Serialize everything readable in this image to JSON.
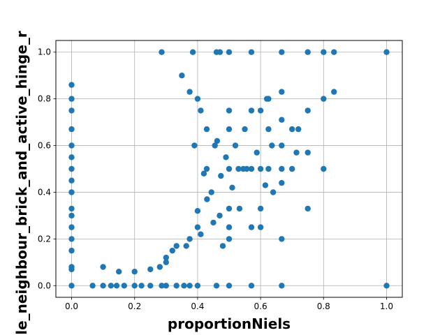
{
  "chart_data": {
    "type": "scatter",
    "title": "",
    "xlabel": "proportionNiels",
    "ylabel": "le_neighbour_brick_and_active_hinge_r",
    "xlim": [
      -0.05,
      1.05
    ],
    "ylim": [
      -0.05,
      1.05
    ],
    "xticks": [
      "0.0",
      "0.2",
      "0.4",
      "0.6",
      "0.8",
      "1.0"
    ],
    "yticks": [
      "0.0",
      "0.2",
      "0.4",
      "0.6",
      "0.8",
      "1.0"
    ],
    "grid": true,
    "marker_color": "#1f77b4",
    "series": [
      {
        "points": [
          [
            0.0,
            0.0
          ],
          [
            0.0,
            0.07
          ],
          [
            0.0,
            0.08
          ],
          [
            0.0,
            0.15
          ],
          [
            0.0,
            0.2
          ],
          [
            0.0,
            0.25
          ],
          [
            0.0,
            0.3
          ],
          [
            0.0,
            0.33
          ],
          [
            0.0,
            0.4
          ],
          [
            0.0,
            0.45
          ],
          [
            0.0,
            0.5
          ],
          [
            0.0,
            0.55
          ],
          [
            0.0,
            0.6
          ],
          [
            0.0,
            0.67
          ],
          [
            0.0,
            0.75
          ],
          [
            0.0,
            0.8
          ],
          [
            0.0,
            0.86
          ],
          [
            0.0667,
            0.0
          ],
          [
            0.1,
            0.0
          ],
          [
            0.125,
            0.0
          ],
          [
            0.143,
            0.0
          ],
          [
            0.167,
            0.0
          ],
          [
            0.2,
            0.0
          ],
          [
            0.222,
            0.0
          ],
          [
            0.25,
            0.0
          ],
          [
            0.286,
            0.0
          ],
          [
            0.3,
            0.0
          ],
          [
            0.333,
            0.0
          ],
          [
            0.357,
            0.0
          ],
          [
            0.375,
            0.0
          ],
          [
            0.4,
            0.0
          ],
          [
            0.46,
            0.0
          ],
          [
            0.5,
            0.0
          ],
          [
            0.571,
            0.0
          ],
          [
            0.667,
            0.0
          ],
          [
            1.0,
            0.0
          ],
          [
            0.286,
            1.0
          ],
          [
            0.385,
            1.0
          ],
          [
            0.46,
            1.0
          ],
          [
            0.471,
            1.0
          ],
          [
            0.5,
            1.0
          ],
          [
            0.571,
            1.0
          ],
          [
            0.667,
            1.0
          ],
          [
            0.75,
            1.0
          ],
          [
            0.8,
            1.0
          ],
          [
            0.833,
            1.0
          ],
          [
            1.0,
            1.0
          ],
          [
            0.8,
            0.8
          ],
          [
            0.8,
            0.5
          ],
          [
            0.75,
            0.75
          ],
          [
            0.75,
            0.57
          ],
          [
            0.75,
            0.33
          ],
          [
            0.714,
            0.57
          ],
          [
            0.7,
            0.67
          ],
          [
            0.667,
            0.83
          ],
          [
            0.667,
            0.71
          ],
          [
            0.667,
            0.5
          ],
          [
            0.667,
            0.44
          ],
          [
            0.667,
            0.2
          ],
          [
            0.625,
            0.8
          ],
          [
            0.625,
            0.67
          ],
          [
            0.625,
            0.5
          ],
          [
            0.6,
            0.75
          ],
          [
            0.6,
            0.5
          ],
          [
            0.6,
            0.33
          ],
          [
            0.6,
            0.25
          ],
          [
            0.571,
            0.75
          ],
          [
            0.571,
            0.5
          ],
          [
            0.571,
            0.25
          ],
          [
            0.556,
            0.5
          ],
          [
            0.545,
            0.5
          ],
          [
            0.533,
            0.33
          ],
          [
            0.5,
            0.75
          ],
          [
            0.5,
            0.67
          ],
          [
            0.5,
            0.5
          ],
          [
            0.5,
            0.33
          ],
          [
            0.5,
            0.25
          ],
          [
            0.5,
            0.2
          ],
          [
            0.48,
            0.17
          ],
          [
            0.455,
            0.6
          ],
          [
            0.444,
            0.4
          ],
          [
            0.429,
            0.67
          ],
          [
            0.429,
            0.5
          ],
          [
            0.41,
            0.75
          ],
          [
            0.4,
            0.8
          ],
          [
            0.4,
            0.25
          ],
          [
            0.375,
            0.2
          ],
          [
            0.375,
            0.83
          ],
          [
            0.364,
            0.17
          ],
          [
            0.35,
            0.9
          ],
          [
            0.333,
            0.17
          ],
          [
            0.32,
            0.15
          ],
          [
            0.3,
            0.12
          ],
          [
            0.3,
            0.1
          ],
          [
            0.28,
            0.08
          ],
          [
            0.25,
            0.07
          ],
          [
            0.2,
            0.06
          ],
          [
            0.15,
            0.06
          ],
          [
            0.1,
            0.08
          ],
          [
            0.833,
            0.83
          ],
          [
            0.636,
            0.6
          ],
          [
            0.615,
            0.43
          ],
          [
            0.588,
            0.57
          ],
          [
            0.52,
            0.6
          ],
          [
            0.474,
            0.47
          ],
          [
            0.462,
            0.62
          ],
          [
            0.7,
            0.5
          ],
          [
            0.72,
            0.67
          ],
          [
            0.667,
            0.6
          ],
          [
            0.64,
            0.4
          ],
          [
            0.62,
            0.8
          ],
          [
            0.55,
            0.67
          ],
          [
            0.53,
            0.5
          ],
          [
            0.51,
            0.42
          ],
          [
            0.49,
            0.55
          ],
          [
            0.47,
            0.3
          ],
          [
            0.45,
            0.27
          ],
          [
            0.43,
            0.37
          ],
          [
            0.42,
            0.48
          ],
          [
            0.41,
            0.22
          ],
          [
            0.4,
            0.32
          ],
          [
            0.39,
            0.6
          ]
        ]
      }
    ]
  }
}
